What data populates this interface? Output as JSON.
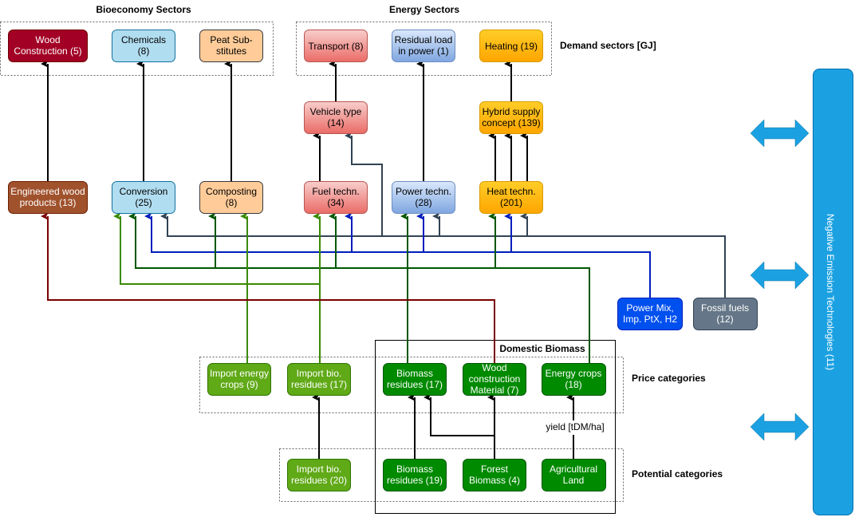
{
  "headings": {
    "bioeconomy": "Bioeconomy Sectors",
    "energy": "Energy Sectors"
  },
  "side_labels": {
    "demand": "Demand sectors [GJ]",
    "price": "Price categories",
    "potential": "Potential categories",
    "domestic": "Domestic Biomass",
    "yield": "yield [tDM/ha]"
  },
  "demand": {
    "wood_construction": [
      "Wood",
      "Construction (5)"
    ],
    "chemicals": [
      "Chemicals",
      "(8)"
    ],
    "peat": [
      "Peat Sub-",
      "stitutes"
    ],
    "transport": [
      "Transport (8)"
    ],
    "residual": [
      "Residual load",
      "in power (1)"
    ],
    "heating": [
      "Heating (19)"
    ]
  },
  "intermediate": {
    "vehicle": [
      "Vehicle type",
      "(14)"
    ],
    "hybrid": [
      "Hybrid supply",
      "concept (139)"
    ]
  },
  "technologies": {
    "engineered_wood": [
      "Engineered wood",
      "products (13)"
    ],
    "conversion": [
      "Conversion",
      "(25)"
    ],
    "composting": [
      "Composting",
      "(8)"
    ],
    "fuel": [
      "Fuel techn.",
      "(34)"
    ],
    "power": [
      "Power techn.",
      "(28)"
    ],
    "heat": [
      "Heat techn.",
      "(201)"
    ]
  },
  "external": {
    "power_mix": [
      "Power Mix,",
      "Imp. PtX, H2"
    ],
    "fossil": [
      "Fossil fuels",
      "(12)"
    ]
  },
  "price": {
    "import_energy_crops": [
      "Import energy",
      "crops (9)"
    ],
    "import_bio_residues": [
      "Import bio.",
      "residues (17)"
    ],
    "biomass_residues": [
      "Biomass",
      "residues (17)"
    ],
    "wood_material": [
      "Wood",
      "construction",
      "Material (7)"
    ],
    "energy_crops": [
      "Energy crops",
      "(18)"
    ]
  },
  "potential": {
    "import_bio_residues": [
      "Import bio.",
      "residues (20)"
    ],
    "biomass_residues": [
      "Biomass",
      "residues (19)"
    ],
    "forest": [
      "Forest",
      "Biomass (4)"
    ],
    "agri": [
      "Agricultural",
      "Land"
    ]
  },
  "net": {
    "label": "Negative Emission Technologies (11)"
  },
  "colors": {
    "fossil_line": "#314354",
    "power_line": "#001DBC",
    "dark_green_line": "#005700",
    "light_green_line": "#3A8A00",
    "wood_line": "#7A0000",
    "net_bar": "#1BA1E2"
  }
}
